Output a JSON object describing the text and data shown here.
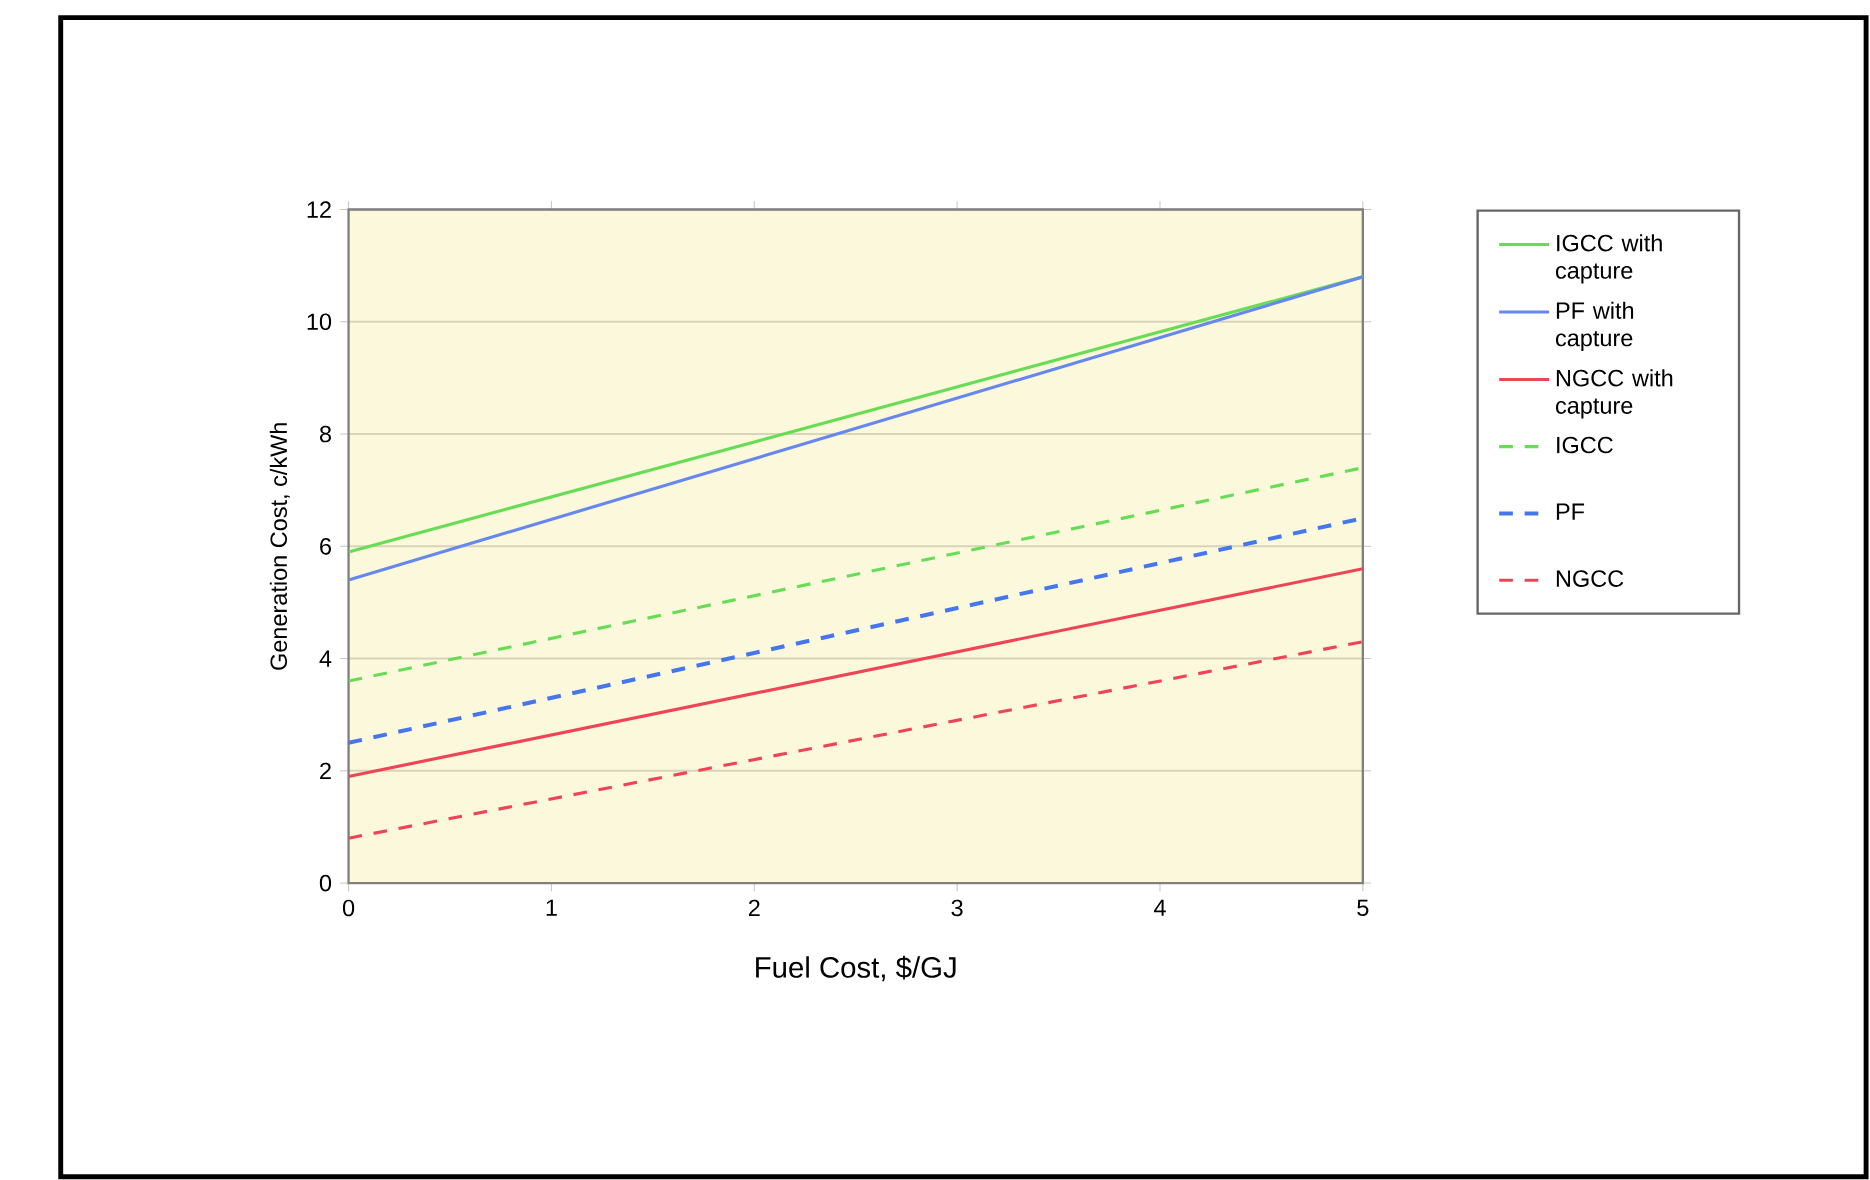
{
  "chart_data": {
    "type": "line",
    "xlabel": "Fuel Cost, $/GJ",
    "ylabel": "Generation Cost, c/kWh",
    "xlim": [
      0,
      5
    ],
    "ylim": [
      0,
      12
    ],
    "xticks": [
      0,
      1,
      2,
      3,
      4,
      5
    ],
    "yticks": [
      0,
      2,
      4,
      6,
      8,
      10,
      12
    ],
    "grid": "y",
    "legend": "right",
    "x": [
      0,
      5
    ],
    "series": [
      {
        "name": "IGCC with capture",
        "color": "#66dd55",
        "line_style": "solid",
        "values": [
          5.9,
          10.8
        ]
      },
      {
        "name": "PF with capture",
        "color": "#6688ee",
        "line_style": "solid",
        "values": [
          5.4,
          10.8
        ]
      },
      {
        "name": "NGCC with capture",
        "color": "#ee4455",
        "line_style": "solid",
        "values": [
          1.9,
          5.6
        ]
      },
      {
        "name": "IGCC",
        "color": "#66dd55",
        "line_style": "dashed",
        "values": [
          3.6,
          7.4
        ]
      },
      {
        "name": "PF",
        "color": "#4477ee",
        "line_style": "dashed",
        "values": [
          2.5,
          6.5
        ]
      },
      {
        "name": "NGCC",
        "color": "#ee4455",
        "line_style": "dashed",
        "values": [
          0.8,
          4.3
        ]
      }
    ]
  }
}
